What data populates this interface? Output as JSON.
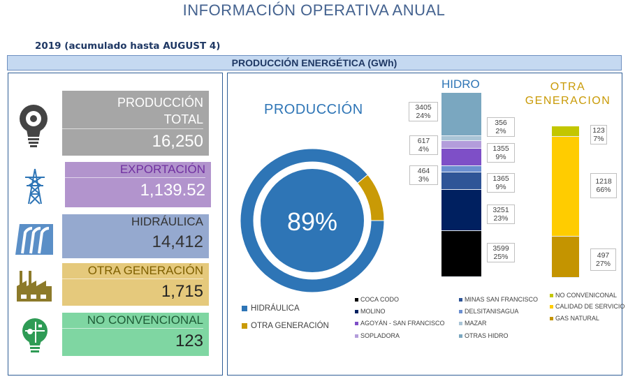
{
  "title": "INFORMACIÓN OPERATIVA ANUAL",
  "subtitle": "2019 (acumulado hasta AUGUST 4)",
  "section_header": "PRODUCCIÓN ENERGÉTICA (GWh)",
  "cards": [
    {
      "label": "PRODUCCIÓN TOTAL",
      "value": "16,250",
      "icon": "lightbulb-gear-icon",
      "color": "#a6a6a6"
    },
    {
      "label": "EXPORTACIÓN",
      "value": "1,139.52",
      "icon": "transmission-tower-icon",
      "color": "#b294cd"
    },
    {
      "label": "HIDRÁULICA",
      "value": "14,412",
      "icon": "dam-icon",
      "color": "#95a9cf"
    },
    {
      "label": "OTRA GENERACIÓN",
      "value": "1,715",
      "icon": "factory-icon",
      "color": "#e5c97c"
    },
    {
      "label": "NO CONVENCIONAL",
      "value": "123",
      "icon": "eco-lightbulb-icon",
      "color": "#7fd6a2"
    }
  ],
  "chart_data": [
    {
      "type": "pie",
      "title": "PRODUCCIÓN",
      "center_label": "89%",
      "categories": [
        "HIDRÁULICA",
        "OTRA GENERACIÓN"
      ],
      "values": [
        89,
        11
      ],
      "colors": [
        "#2e75b6",
        "#c99a06"
      ],
      "legend": "bottom-left"
    },
    {
      "type": "bar",
      "stacked": true,
      "title": "HIDRO",
      "series": [
        {
          "name": "COCA CODO",
          "value": 3599,
          "pct": "25%",
          "color": "#000000"
        },
        {
          "name": "MOLINO",
          "value": 3251,
          "pct": "23%",
          "color": "#002060"
        },
        {
          "name": "MINAS SAN FRANCISCO",
          "value": 1365,
          "pct": "9%",
          "color": "#2f5597"
        },
        {
          "name": "DELSITANISAGUA",
          "value": 464,
          "pct": "3%",
          "color": "#6b8fd0"
        },
        {
          "name": "AGOYÁN - SAN FRANCISCO",
          "value": 1355,
          "pct": "9%",
          "color": "#7e4fc7"
        },
        {
          "name": "SOPLADORA",
          "value": 617,
          "pct": "4%",
          "color": "#b39ddb"
        },
        {
          "name": "MAZAR",
          "value": 356,
          "pct": "2%",
          "color": "#a9c4d6"
        },
        {
          "name": "OTRAS HIDRO",
          "value": 3405,
          "pct": "24%",
          "color": "#7aa7c0"
        }
      ]
    },
    {
      "type": "bar",
      "stacked": true,
      "title": "OTRA GENERACION",
      "series": [
        {
          "name": "GAS NATURAL",
          "value": 497,
          "pct": "27%",
          "color": "#c49400"
        },
        {
          "name": "CALIDAD DE SERVICIO",
          "value": 1218,
          "pct": "66%",
          "color": "#ffcc00"
        },
        {
          "name": "NO CONVENICONAL",
          "value": 123,
          "pct": "7%",
          "color": "#c3c600"
        }
      ]
    }
  ]
}
